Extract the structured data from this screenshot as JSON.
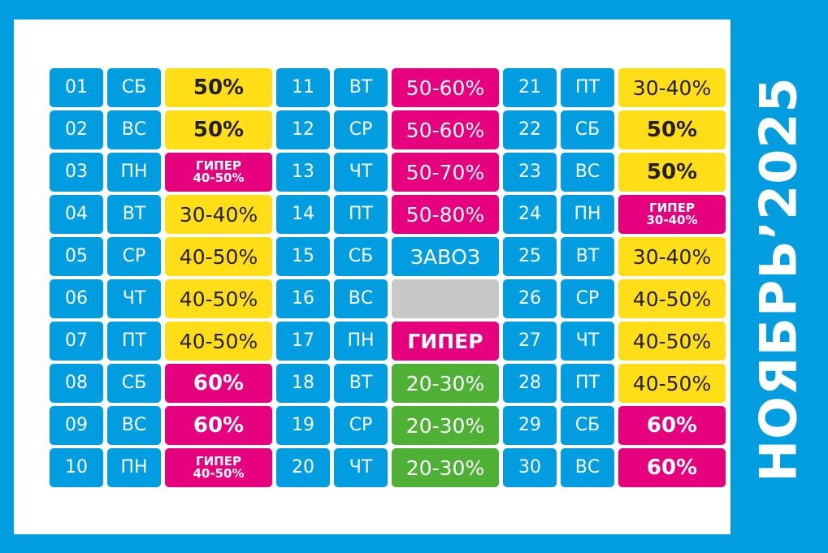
{
  "title": "НОЯБРЬ’2025",
  "colors": {
    "background": "#009ee0",
    "panel": "#ffffff",
    "blue": "#009ee0",
    "yellow": "#ffde17",
    "magenta": "#e6007e",
    "green": "#4fb036",
    "gray": "#c8c8c8"
  },
  "columns": [
    [
      {
        "day": "01",
        "dow": "СБ",
        "label": "50%",
        "color": "yellow",
        "style": "bold"
      },
      {
        "day": "02",
        "dow": "ВС",
        "label": "50%",
        "color": "yellow",
        "style": "bold"
      },
      {
        "day": "03",
        "dow": "ПН",
        "label": "ГИПЕР",
        "label2": "40-50%",
        "color": "magenta",
        "style": "small"
      },
      {
        "day": "04",
        "dow": "ВТ",
        "label": "30-40%",
        "color": "yellow",
        "style": "normal"
      },
      {
        "day": "05",
        "dow": "СР",
        "label": "40-50%",
        "color": "yellow",
        "style": "normal"
      },
      {
        "day": "06",
        "dow": "ЧТ",
        "label": "40-50%",
        "color": "yellow",
        "style": "normal"
      },
      {
        "day": "07",
        "dow": "ПТ",
        "label": "40-50%",
        "color": "yellow",
        "style": "normal"
      },
      {
        "day": "08",
        "dow": "СБ",
        "label": "60%",
        "color": "magenta",
        "style": "bold"
      },
      {
        "day": "09",
        "dow": "ВС",
        "label": "60%",
        "color": "magenta",
        "style": "bold"
      },
      {
        "day": "10",
        "dow": "ПН",
        "label": "ГИПЕР",
        "label2": "40-50%",
        "color": "magenta",
        "style": "small"
      }
    ],
    [
      {
        "day": "11",
        "dow": "ВТ",
        "label": "50-60%",
        "color": "magenta",
        "style": "normal"
      },
      {
        "day": "12",
        "dow": "СР",
        "label": "50-60%",
        "color": "magenta",
        "style": "normal"
      },
      {
        "day": "13",
        "dow": "ЧТ",
        "label": "50-70%",
        "color": "magenta",
        "style": "normal"
      },
      {
        "day": "14",
        "dow": "ПТ",
        "label": "50-80%",
        "color": "magenta",
        "style": "normal"
      },
      {
        "day": "15",
        "dow": "СБ",
        "label": "ЗАВОЗ",
        "color": "blue",
        "style": "normal"
      },
      {
        "day": "16",
        "dow": "ВС",
        "label": "",
        "color": "gray",
        "style": "normal"
      },
      {
        "day": "17",
        "dow": "ПН",
        "label": "ГИПЕР",
        "color": "magenta",
        "style": "hyper"
      },
      {
        "day": "18",
        "dow": "ВТ",
        "label": "20-30%",
        "color": "green",
        "style": "normal"
      },
      {
        "day": "19",
        "dow": "СР",
        "label": "20-30%",
        "color": "green",
        "style": "normal"
      },
      {
        "day": "20",
        "dow": "ЧТ",
        "label": "20-30%",
        "color": "green",
        "style": "normal"
      }
    ],
    [
      {
        "day": "21",
        "dow": "ПТ",
        "label": "30-40%",
        "color": "yellow",
        "style": "normal"
      },
      {
        "day": "22",
        "dow": "СБ",
        "label": "50%",
        "color": "yellow",
        "style": "bold"
      },
      {
        "day": "23",
        "dow": "ВС",
        "label": "50%",
        "color": "yellow",
        "style": "bold"
      },
      {
        "day": "24",
        "dow": "ПН",
        "label": "ГИПЕР",
        "label2": "30-40%",
        "color": "magenta",
        "style": "small"
      },
      {
        "day": "25",
        "dow": "ВТ",
        "label": "30-40%",
        "color": "yellow",
        "style": "normal"
      },
      {
        "day": "26",
        "dow": "СР",
        "label": "40-50%",
        "color": "yellow",
        "style": "normal"
      },
      {
        "day": "27",
        "dow": "ЧТ",
        "label": "40-50%",
        "color": "yellow",
        "style": "normal"
      },
      {
        "day": "28",
        "dow": "ПТ",
        "label": "40-50%",
        "color": "yellow",
        "style": "normal"
      },
      {
        "day": "29",
        "dow": "СБ",
        "label": "60%",
        "color": "magenta",
        "style": "bold"
      },
      {
        "day": "30",
        "dow": "ВС",
        "label": "60%",
        "color": "magenta",
        "style": "bold"
      }
    ]
  ]
}
